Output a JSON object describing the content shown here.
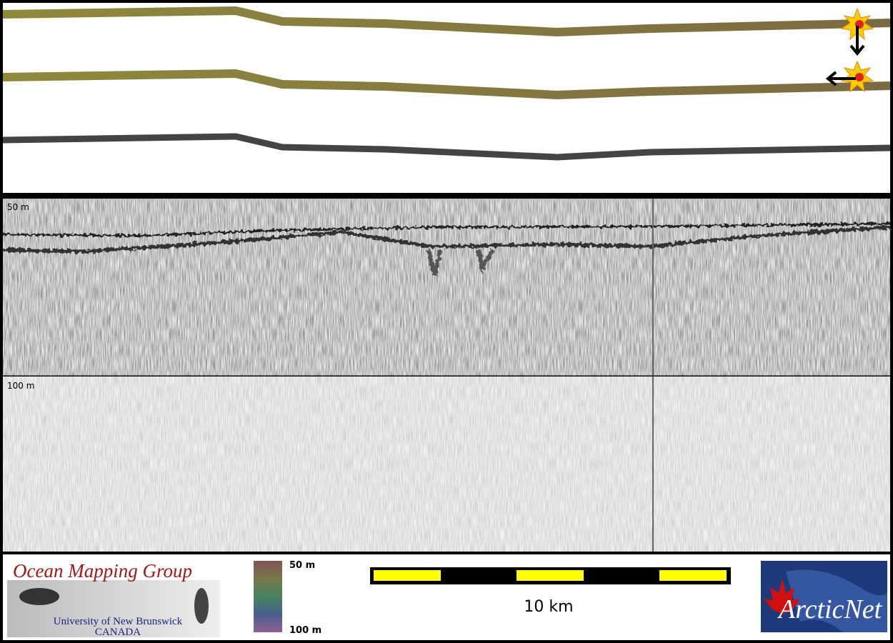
{
  "sonar": {
    "depth_labels": [
      "50 m",
      "100 m"
    ]
  },
  "legend": {
    "colorbar_labels": [
      "50 m",
      "100 m"
    ],
    "scale_label": "10 km"
  },
  "logos": {
    "omg": {
      "title": "Ocean Mapping Group",
      "university": "University of New Brunswick",
      "country": "CANADA"
    },
    "arcticnet": "ArcticNet"
  }
}
